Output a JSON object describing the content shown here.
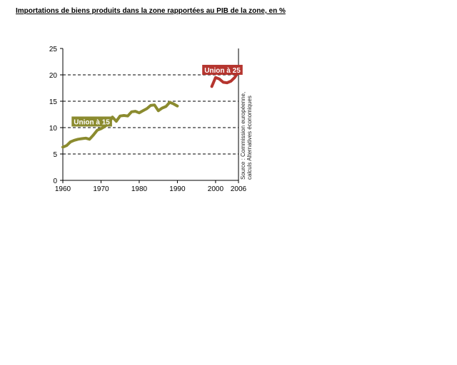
{
  "title": "Importations de biens produits dans la zone rapportées au PIB de la zone, en %",
  "colors": {
    "u15": "#8B8B2F",
    "u25": "#B5352F",
    "grid": "#000000"
  },
  "source_lines": [
    "Source : Commission européenne,",
    "calculs Alternatives économiques"
  ],
  "chart_data": {
    "type": "line",
    "xlim": [
      1960,
      2006
    ],
    "ylim": [
      0,
      25
    ],
    "x_ticks": [
      1960,
      1970,
      1980,
      1990,
      2000,
      2006
    ],
    "y_ticks": [
      0,
      5,
      10,
      15,
      20,
      25
    ],
    "dashed_grid_y": [
      5,
      10,
      15,
      20
    ],
    "series": [
      {
        "name": "Union à 15",
        "color": "#8B8B2F",
        "x": [
          1960,
          1961,
          1962,
          1963,
          1964,
          1965,
          1966,
          1967,
          1968,
          1969,
          1970,
          1971,
          1972,
          1973,
          1974,
          1975,
          1976,
          1977,
          1978,
          1979,
          1980,
          1981,
          1982,
          1983,
          1984,
          1985,
          1986,
          1987,
          1988,
          1989,
          1990
        ],
        "y": [
          6.3,
          6.6,
          7.3,
          7.6,
          7.8,
          7.9,
          8.0,
          7.8,
          8.6,
          9.5,
          9.8,
          10.2,
          10.8,
          12.0,
          11.2,
          12.2,
          12.3,
          12.2,
          13.0,
          13.1,
          12.8,
          13.2,
          13.6,
          14.2,
          14.3,
          13.2,
          13.7,
          14.0,
          14.8,
          14.5,
          14.1
        ]
      },
      {
        "name": "Union à 25",
        "color": "#B5352F",
        "x": [
          1999,
          2000,
          2001,
          2002,
          2003,
          2004,
          2005,
          2006
        ],
        "y": [
          17.8,
          19.5,
          19.2,
          18.6,
          18.5,
          18.8,
          19.5,
          20.6
        ]
      }
    ]
  }
}
